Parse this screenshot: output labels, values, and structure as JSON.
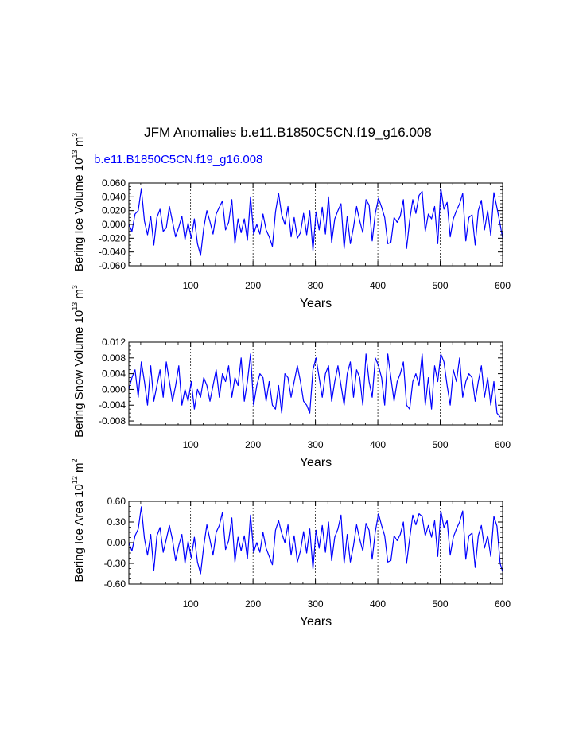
{
  "chart_data": [
    {
      "type": "line",
      "title": "JFM Anomalies b.e11.B1850C5CN.f19_g16.008",
      "subtitle": "b.e11.B1850C5CN.f19_g16.008",
      "xlabel": "Years",
      "ylabel": "Bering Ice Volume 10",
      "ylabel_exp": "13",
      "ylabel_unit": "m",
      "ylabel_unit_exp": "3",
      "xlim": [
        1,
        600
      ],
      "ylim": [
        -0.06,
        0.06
      ],
      "xticks": [
        "100",
        "200",
        "300",
        "400",
        "500",
        "600"
      ],
      "yticks": [
        "0.060",
        "0.040",
        "0.020",
        "0.000",
        "-0.020",
        "-0.040",
        "-0.060"
      ],
      "ytick_values": [
        0.06,
        0.04,
        0.02,
        0.0,
        -0.02,
        -0.04,
        -0.06
      ],
      "grid": "dashed vertical lines at x = 100, 200, 300, 400, 500",
      "line_color": "#0000ff",
      "series": [
        {
          "name": "Bering Ice Volume",
          "x_start": 1,
          "x_step": 5,
          "values": [
            0.0,
            -0.01,
            0.015,
            0.02,
            0.052,
            0.005,
            -0.015,
            0.012,
            -0.03,
            0.01,
            0.022,
            -0.01,
            -0.005,
            0.026,
            0.004,
            -0.018,
            -0.004,
            0.012,
            -0.022,
            0.002,
            -0.02,
            0.008,
            -0.028,
            -0.045,
            -0.005,
            0.02,
            0.004,
            -0.014,
            0.015,
            0.025,
            0.034,
            -0.008,
            0.003,
            0.036,
            -0.028,
            0.008,
            -0.012,
            0.008,
            -0.023,
            0.04,
            -0.014,
            0.0,
            -0.014,
            0.015,
            -0.008,
            -0.018,
            -0.032,
            0.018,
            0.045,
            0.014,
            0.0,
            0.026,
            -0.018,
            0.01,
            -0.02,
            -0.012,
            0.016,
            -0.015,
            0.02,
            -0.038,
            0.018,
            -0.008,
            0.025,
            -0.014,
            0.04,
            -0.026,
            0.008,
            0.02,
            0.03,
            -0.035,
            0.012,
            -0.028,
            -0.004,
            0.026,
            0.005,
            -0.012,
            0.036,
            0.028,
            -0.024,
            0.016,
            0.038,
            0.025,
            0.01,
            -0.028,
            -0.026,
            0.01,
            0.003,
            0.012,
            0.036,
            -0.035,
            0.006,
            0.036,
            0.016,
            0.042,
            0.048,
            -0.01,
            0.015,
            0.008,
            0.026,
            -0.028,
            0.052,
            0.022,
            0.032,
            -0.018,
            0.008,
            0.02,
            0.03,
            0.045,
            -0.024,
            0.01,
            0.014,
            -0.03,
            0.02,
            0.035,
            -0.008,
            0.02,
            -0.016,
            0.046,
            0.024,
            0.0,
            -0.02
          ]
        }
      ]
    },
    {
      "type": "line",
      "xlabel": "Years",
      "ylabel": "Bering Snow Volume 10",
      "ylabel_exp": "13",
      "ylabel_unit": "m",
      "ylabel_unit_exp": "3",
      "xlim": [
        1,
        600
      ],
      "ylim": [
        -0.009,
        0.012
      ],
      "xticks": [
        "100",
        "200",
        "300",
        "400",
        "500",
        "600"
      ],
      "yticks": [
        "0.012",
        "0.008",
        "0.004",
        "0.000",
        "-0.004",
        "-0.008"
      ],
      "ytick_values": [
        0.012,
        0.008,
        0.004,
        0.0,
        -0.004,
        -0.008
      ],
      "grid": "dashed vertical lines at x = 100, 200, 300, 400, 500",
      "line_color": "#0000ff",
      "series": [
        {
          "name": "Bering Snow Volume",
          "x_start": 1,
          "x_step": 5,
          "values": [
            0.0,
            0.003,
            0.005,
            -0.002,
            0.007,
            0.002,
            -0.004,
            0.006,
            -0.003,
            0.001,
            0.005,
            -0.002,
            0.007,
            0.002,
            -0.003,
            0.001,
            0.006,
            -0.004,
            0.0,
            -0.003,
            0.002,
            -0.005,
            0.0,
            -0.002,
            0.003,
            0.001,
            -0.003,
            0.001,
            0.005,
            -0.002,
            0.004,
            0.002,
            0.006,
            -0.002,
            0.003,
            0.001,
            0.008,
            -0.003,
            0.002,
            0.009,
            -0.004,
            0.001,
            0.004,
            0.003,
            -0.003,
            0.002,
            -0.004,
            -0.005,
            0.001,
            -0.006,
            0.004,
            0.003,
            -0.002,
            0.002,
            0.006,
            0.002,
            -0.003,
            -0.004,
            -0.006,
            0.005,
            0.008,
            0.003,
            -0.002,
            0.004,
            0.006,
            -0.003,
            0.002,
            0.006,
            0.001,
            -0.004,
            0.004,
            0.007,
            -0.002,
            0.005,
            0.003,
            -0.004,
            0.009,
            0.002,
            -0.002,
            0.008,
            0.006,
            0.003,
            -0.004,
            0.009,
            0.003,
            -0.003,
            0.002,
            0.004,
            0.007,
            -0.004,
            -0.005,
            0.002,
            0.004,
            0.001,
            0.009,
            -0.004,
            0.003,
            -0.005,
            0.006,
            0.002,
            0.009,
            0.007,
            0.001,
            -0.004,
            0.005,
            0.002,
            0.008,
            -0.002,
            0.002,
            0.004,
            0.003,
            -0.003,
            0.002,
            0.006,
            -0.002,
            0.003,
            -0.004,
            0.002,
            -0.006,
            -0.007
          ]
        }
      ]
    },
    {
      "type": "line",
      "xlabel": "Years",
      "ylabel": "Bering Ice Area 10",
      "ylabel_exp": "12",
      "ylabel_unit": "m",
      "ylabel_unit_exp": "2",
      "xlim": [
        1,
        600
      ],
      "ylim": [
        -0.6,
        0.6
      ],
      "xticks": [
        "100",
        "200",
        "300",
        "400",
        "500",
        "600"
      ],
      "yticks": [
        "0.60",
        "0.30",
        "0.00",
        "-0.30",
        "-0.60"
      ],
      "ytick_values": [
        0.6,
        0.3,
        0.0,
        -0.3,
        -0.6
      ],
      "grid": "dashed vertical lines at x = 100, 200, 300, 400, 500",
      "line_color": "#0000ff",
      "series": [
        {
          "name": "Bering Ice Area",
          "x_start": 1,
          "x_step": 5,
          "values": [
            0.0,
            -0.12,
            0.1,
            0.2,
            0.52,
            0.06,
            -0.18,
            0.12,
            -0.4,
            0.1,
            0.22,
            -0.14,
            0.05,
            0.25,
            0.04,
            -0.26,
            -0.04,
            0.12,
            -0.3,
            0.02,
            -0.22,
            0.08,
            -0.28,
            -0.45,
            -0.05,
            0.26,
            0.04,
            -0.18,
            0.15,
            0.25,
            0.44,
            -0.1,
            0.03,
            0.36,
            -0.28,
            0.08,
            -0.12,
            0.1,
            -0.23,
            0.4,
            -0.14,
            0.0,
            -0.14,
            0.15,
            -0.08,
            -0.2,
            -0.32,
            0.18,
            0.32,
            0.14,
            0.0,
            0.26,
            -0.18,
            0.1,
            -0.28,
            -0.12,
            0.16,
            -0.15,
            0.2,
            -0.38,
            0.18,
            -0.08,
            0.25,
            -0.14,
            0.3,
            -0.26,
            0.08,
            0.2,
            0.4,
            -0.3,
            0.12,
            -0.28,
            -0.04,
            0.26,
            0.05,
            -0.12,
            0.28,
            0.18,
            -0.24,
            0.16,
            0.42,
            0.25,
            0.1,
            -0.28,
            -0.26,
            0.1,
            0.03,
            0.12,
            0.3,
            -0.3,
            0.06,
            0.4,
            0.26,
            0.42,
            0.38,
            0.1,
            0.25,
            0.08,
            0.32,
            -0.2,
            0.46,
            0.22,
            0.32,
            -0.18,
            0.08,
            0.2,
            0.3,
            0.46,
            -0.24,
            0.1,
            0.14,
            -0.36,
            0.1,
            0.25,
            -0.08,
            0.1,
            -0.2,
            0.38,
            0.24,
            -0.3,
            -0.42
          ]
        }
      ]
    }
  ]
}
